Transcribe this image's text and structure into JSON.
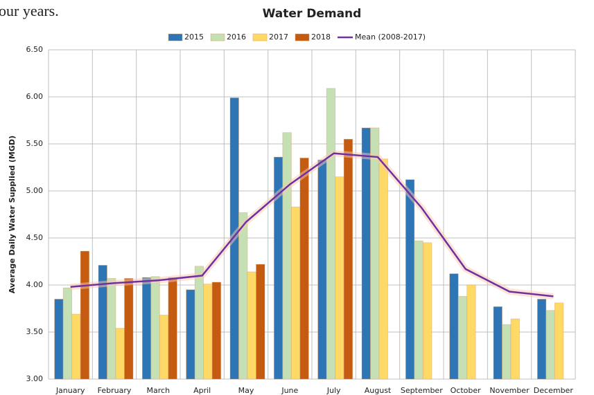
{
  "text_fragment": "our years.",
  "chart_data": {
    "type": "bar",
    "title": "Water Demand",
    "y_label": "Average Daily Water  Supplied (MGD)",
    "categories": [
      "January",
      "February",
      "March",
      "April",
      "May",
      "June",
      "July",
      "August",
      "September",
      "October",
      "November",
      "December"
    ],
    "series": [
      {
        "name": "2015",
        "color": "#2e75b6",
        "values": [
          3.85,
          4.21,
          4.08,
          3.95,
          5.99,
          5.36,
          5.33,
          5.67,
          5.12,
          4.12,
          3.77,
          3.85
        ]
      },
      {
        "name": "2016",
        "color": "#c5e0b4",
        "values": [
          3.97,
          4.07,
          4.09,
          4.2,
          4.77,
          5.62,
          6.09,
          5.67,
          4.47,
          3.88,
          3.58,
          3.73
        ]
      },
      {
        "name": "2017",
        "color": "#ffd966",
        "values": [
          3.69,
          3.54,
          3.68,
          4.01,
          4.14,
          4.83,
          5.15,
          5.34,
          4.45,
          4.0,
          3.64,
          3.81
        ]
      },
      {
        "name": "2018",
        "color": "#c55a11",
        "values": [
          4.36,
          4.07,
          4.08,
          4.03,
          4.22,
          5.35,
          5.55,
          null,
          null,
          null,
          null,
          null
        ]
      },
      {
        "name": "Mean (2008-2017)",
        "color": "#7030a0",
        "type": "line",
        "values": [
          3.98,
          4.02,
          4.05,
          4.1,
          4.67,
          5.07,
          5.4,
          5.36,
          4.82,
          4.17,
          3.93,
          3.88
        ]
      }
    ],
    "ylim": [
      3,
      6.5
    ],
    "yticks": [
      {
        "value": 3,
        "label": "3.00"
      },
      {
        "value": 3.5,
        "label": "3.50"
      },
      {
        "value": 4,
        "label": "4.00"
      },
      {
        "value": 4.5,
        "label": "4.50"
      },
      {
        "value": 5,
        "label": "5.00"
      },
      {
        "value": 5.5,
        "label": "5.50"
      },
      {
        "value": 6,
        "label": "6.00"
      },
      {
        "value": 6.5,
        "label": "6.50"
      }
    ],
    "grid": true,
    "legend": "top"
  }
}
